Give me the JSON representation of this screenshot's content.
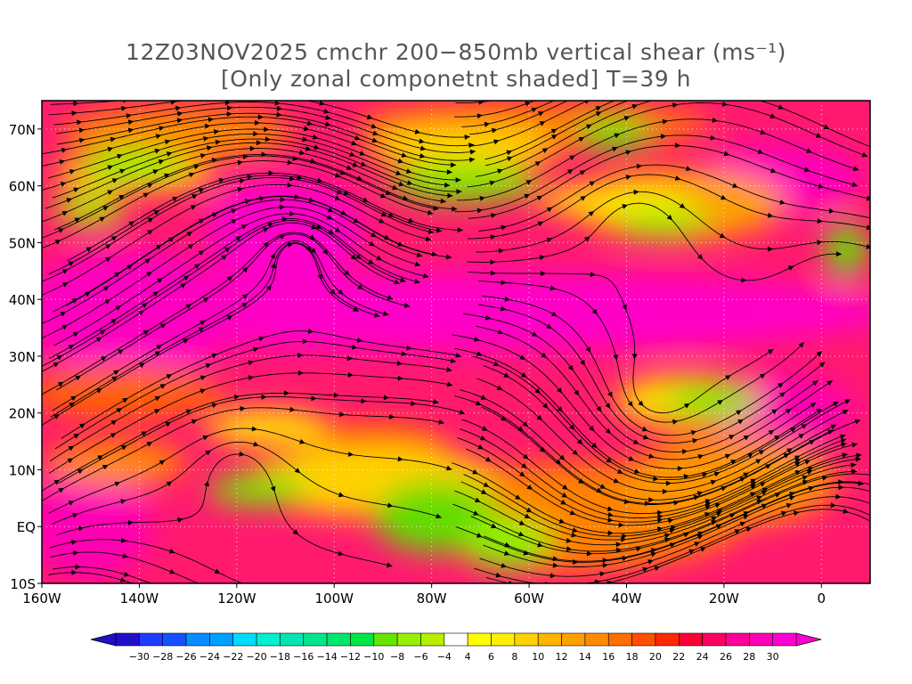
{
  "title": {
    "line1": "12Z03NOV2025 cmchr 200−850mb vertical shear (ms⁻¹)",
    "line2": "[Only zonal componetnt shaded] T=39 h"
  },
  "map": {
    "lon_range": [
      -160,
      10
    ],
    "lat_range": [
      -10,
      75
    ],
    "lat_ticks": [
      {
        "value": 70,
        "label": "70N"
      },
      {
        "value": 60,
        "label": "60N"
      },
      {
        "value": 50,
        "label": "50N"
      },
      {
        "value": 40,
        "label": "40N"
      },
      {
        "value": 30,
        "label": "30N"
      },
      {
        "value": 20,
        "label": "20N"
      },
      {
        "value": 10,
        "label": "10N"
      },
      {
        "value": 0,
        "label": "EQ"
      },
      {
        "value": -10,
        "label": "10S"
      }
    ],
    "lon_ticks": [
      {
        "value": -160,
        "label": "160W"
      },
      {
        "value": -140,
        "label": "140W"
      },
      {
        "value": -120,
        "label": "120W"
      },
      {
        "value": -100,
        "label": "100W"
      },
      {
        "value": -80,
        "label": "80W"
      },
      {
        "value": -60,
        "label": "60W"
      },
      {
        "value": -40,
        "label": "40W"
      },
      {
        "value": -20,
        "label": "20W"
      },
      {
        "value": 0,
        "label": "0"
      }
    ]
  },
  "colorbar": {
    "labels": [
      "−30",
      "−28",
      "−26",
      "−24",
      "−22",
      "−20",
      "−18",
      "−16",
      "−14",
      "−12",
      "−10",
      "−8",
      "−6",
      "−4",
      "4",
      "6",
      "8",
      "10",
      "12",
      "14",
      "16",
      "18",
      "20",
      "22",
      "24",
      "26",
      "28",
      "30"
    ],
    "colors": [
      "#1f10c8",
      "#1e3cff",
      "#1450ff",
      "#0a8cff",
      "#00a0ff",
      "#00dcff",
      "#00f0d2",
      "#00e6b4",
      "#00e68c",
      "#00e66e",
      "#00e646",
      "#64e600",
      "#96f000",
      "#b4f000",
      "#ffffff",
      "#ffff00",
      "#fff000",
      "#ffd200",
      "#ffb400",
      "#ffa000",
      "#ff8c00",
      "#ff6e00",
      "#ff5000",
      "#ff2800",
      "#ff0032",
      "#ff0064",
      "#ff0096",
      "#ff00b4",
      "#ff00d2"
    ]
  }
}
